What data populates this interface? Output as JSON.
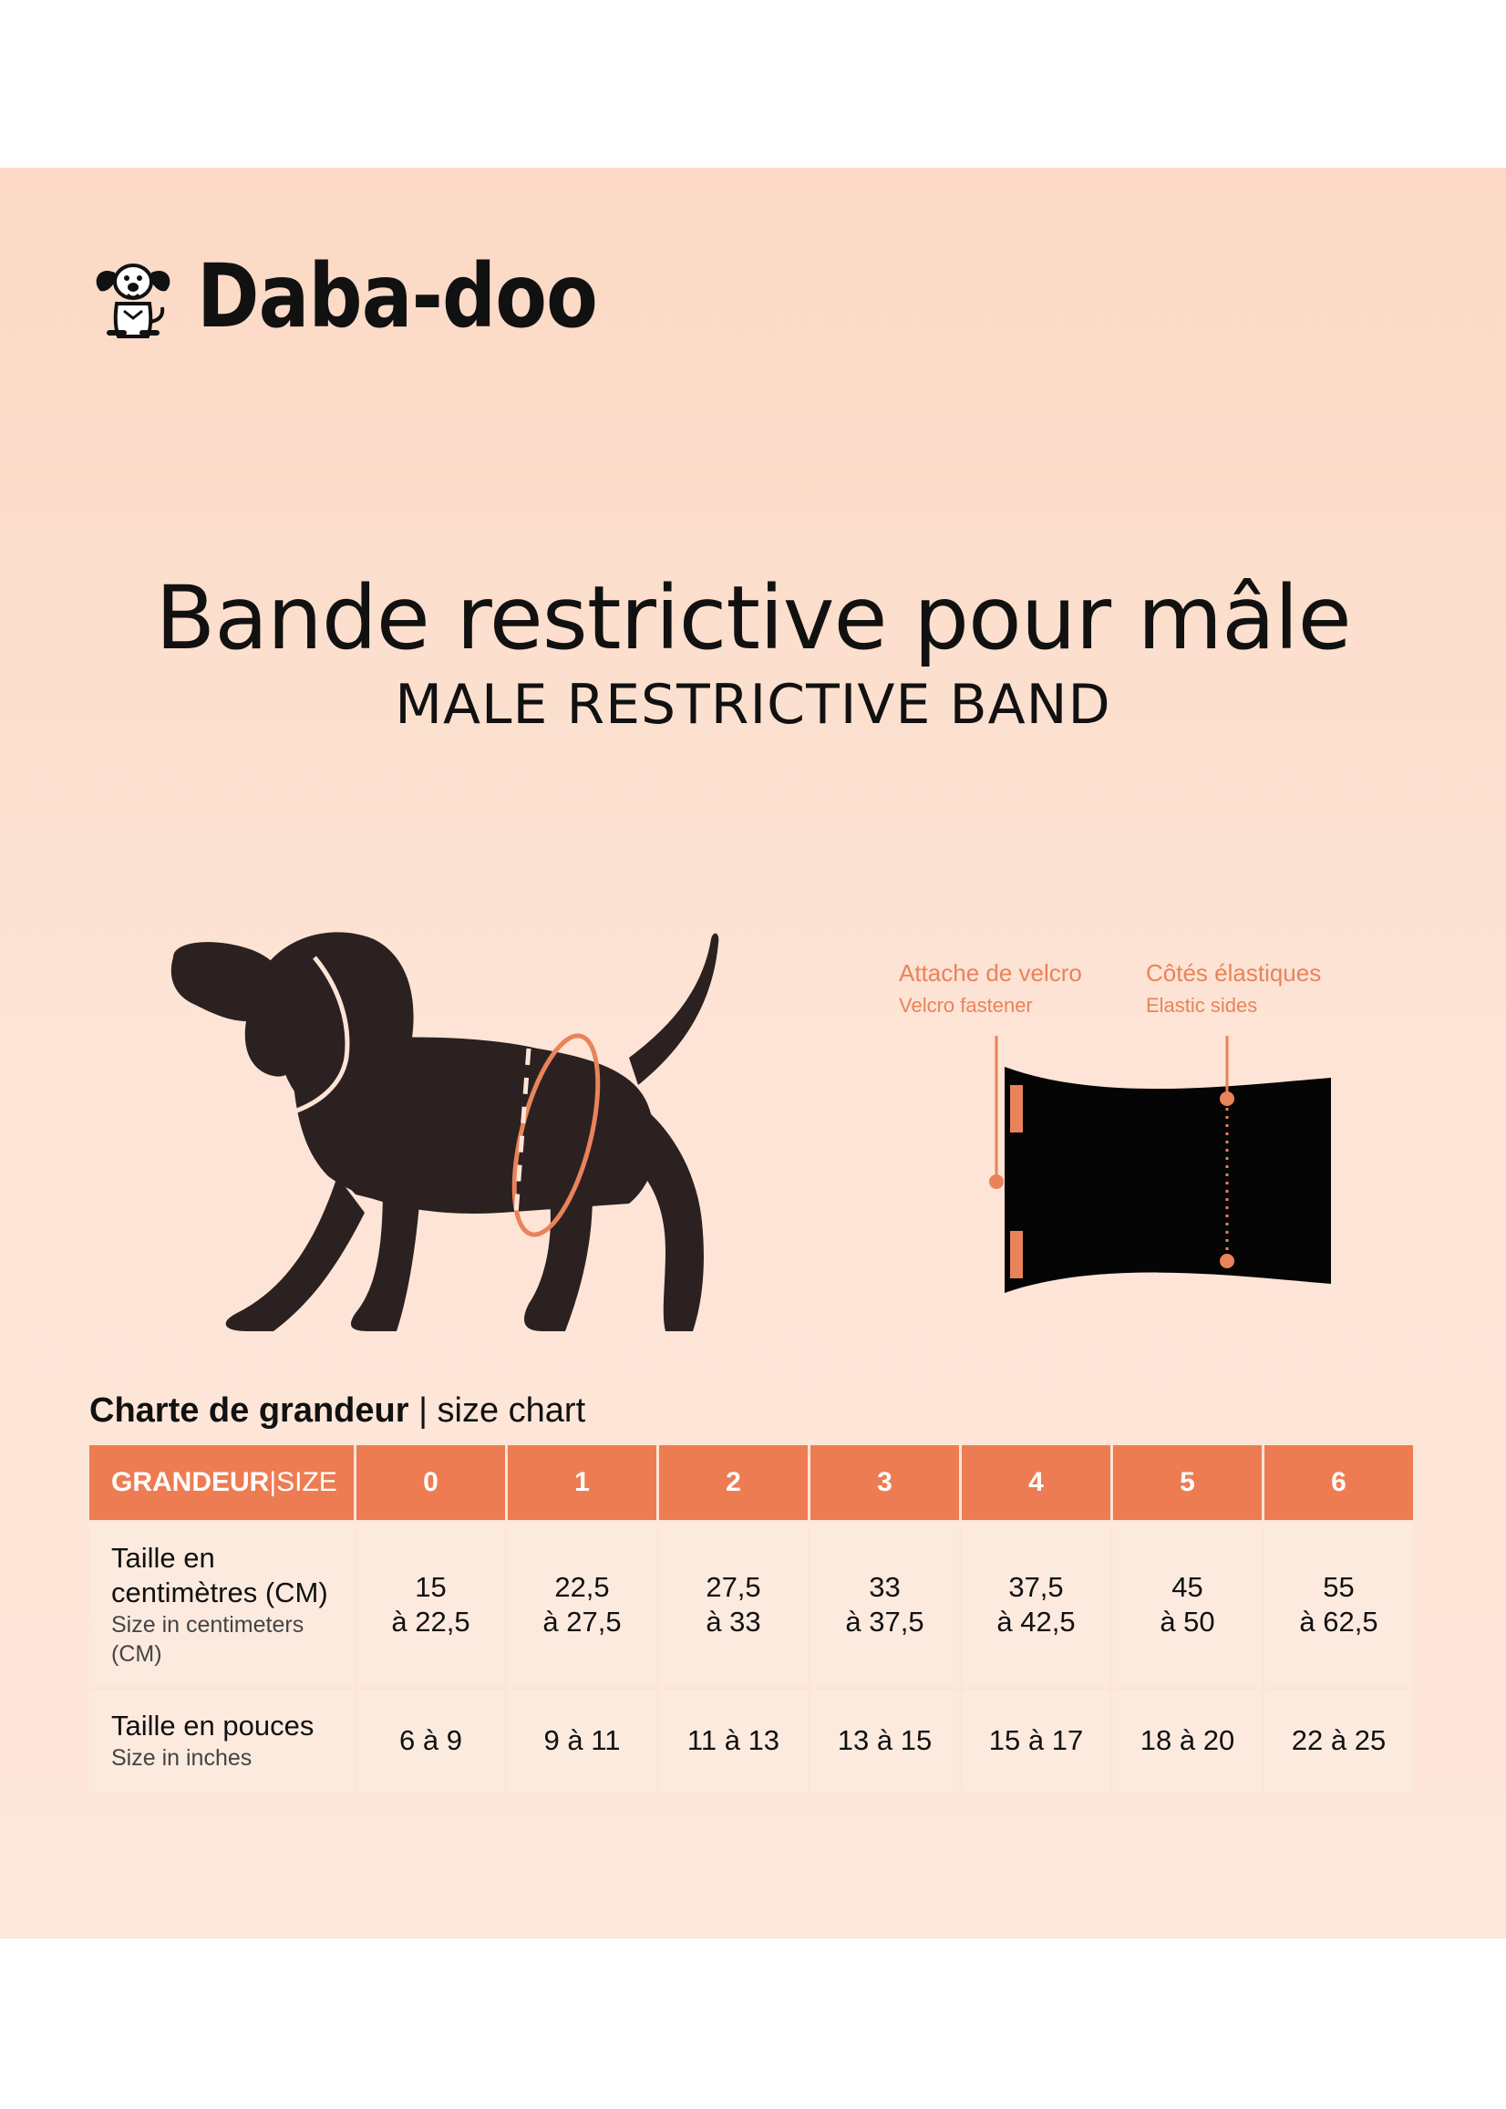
{
  "brand": {
    "name": "Daba-doo",
    "logo_icon": "dog-mascot-icon"
  },
  "heading": {
    "title": "Bande restrictive pour mâle",
    "subtitle": "MALE RESTRICTIVE BAND"
  },
  "illustration": {
    "dog": "dog-silhouette-icon",
    "band": "band-diagram-icon",
    "accent_color": "#e9835a",
    "callouts": [
      {
        "main": "Attache de velcro",
        "sub": "Velcro fastener"
      },
      {
        "main": "Côtés élastiques",
        "sub": "Elastic sides"
      }
    ]
  },
  "chart": {
    "title_bold": "Charte de grandeur",
    "separator": "|",
    "title_rest": " size chart",
    "header": {
      "label_main": "GRANDEUR",
      "label_sep": "|",
      "label_sub": "SIZE"
    },
    "sizes": [
      "0",
      "1",
      "2",
      "3",
      "4",
      "5",
      "6"
    ],
    "rows": [
      {
        "label_main": "Taille en centimètres (CM)",
        "label_sub": "Size in centimeters (CM)",
        "values": [
          [
            "15",
            "à 22,5"
          ],
          [
            "22,5",
            "à 27,5"
          ],
          [
            "27,5",
            "à 33"
          ],
          [
            "33",
            "à 37,5"
          ],
          [
            "37,5",
            "à 42,5"
          ],
          [
            "45",
            "à 50"
          ],
          [
            "55",
            "à 62,5"
          ]
        ]
      },
      {
        "label_main": "Taille en pouces",
        "label_sub": "Size in inches",
        "values": [
          "6 à 9",
          "9 à 11",
          "11 à 13",
          "13 à 15",
          "15 à 17",
          "18 à 20",
          "22 à 25"
        ]
      }
    ],
    "header_color": "#ee7c52"
  }
}
